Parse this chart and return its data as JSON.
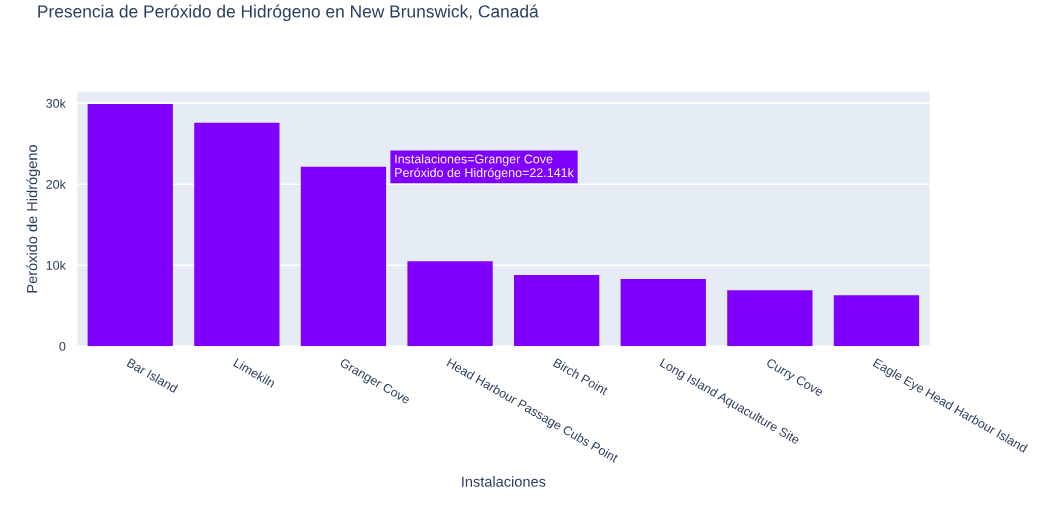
{
  "chart_data": {
    "type": "bar",
    "title": "Presencia de Peróxido de Hidrógeno en New Brunswick, Canadá",
    "xlabel": "Instalaciones",
    "ylabel": "Peróxido de Hidrógeno",
    "categories": [
      "Bar Island",
      "Limekiln",
      "Granger Cove",
      "Head Harbour Passage Cubs Point",
      "Birch Point",
      "Long Island Aquaculture Site",
      "Curry Cove",
      "Eagle Eye Head Harbour Island"
    ],
    "values": [
      29900,
      27600,
      22141,
      10500,
      8800,
      8300,
      6900,
      6300
    ],
    "color": "#7f00ff",
    "ylim": [
      0,
      31400
    ],
    "yticks": [
      0,
      {
        "value": 10000,
        "label": "10k"
      },
      {
        "value": 20000,
        "label": "20k"
      },
      {
        "value": 30000,
        "label": "30k"
      }
    ],
    "grid": "y",
    "annotations": [
      "Instalaciones=Granger Cove\nPeróxido de Hidrógeno=22.141k"
    ]
  }
}
